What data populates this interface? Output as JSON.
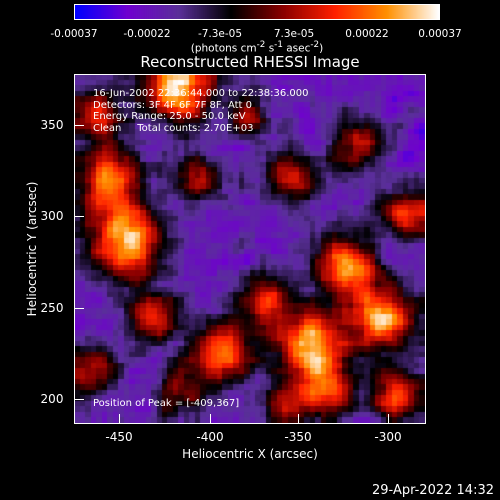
{
  "chart_data": {
    "type": "heatmap",
    "title": "Reconstructed RHESSI Image",
    "xlabel": "Heliocentric X (arcsec)",
    "ylabel": "Heliocentric Y (arcsec)",
    "x_ticks": [
      "-450",
      "-400",
      "-350",
      "-300"
    ],
    "x_tick_values": [
      -450,
      -400,
      -350,
      -300
    ],
    "y_ticks": [
      "200",
      "250",
      "300",
      "350"
    ],
    "y_tick_values": [
      200,
      250,
      300,
      350
    ],
    "xlim": [
      -472,
      -282
    ],
    "ylim": [
      185,
      372
    ],
    "colorbar": {
      "tick_labels": [
        "-0.00037",
        "-0.00022",
        "-7.3e-05",
        "7.3e-05",
        "0.00022",
        "0.00037"
      ],
      "range": [
        -0.00037,
        0.00037
      ],
      "units_html": "(photons cm<sup>-2</sup> s<sup>-1</sup> asec<sup>-2</sup>)",
      "colormap": [
        "#0000ff",
        "#7000d0",
        "#5a3099",
        "#000000",
        "#8a0000",
        "#ff2000",
        "#ff9000",
        "#ffffff"
      ]
    },
    "annotations": {
      "time_range": "16-Jun-2002 22:36:44.000 to 22:38:36.000",
      "detectors": "Detectors: 3F 4F 6F 7F 8F, Att 0",
      "energy_range": "Energy Range: 25.0 - 50.0 keV",
      "algorithm": "Clean     Total counts: 2.70E+03",
      "peak_position": "Position of Peak = [-409,367]"
    },
    "peak": [
      -409,
      367
    ],
    "grid": false
  },
  "footer": {
    "timestamp": "29-Apr-2022 14:32"
  }
}
